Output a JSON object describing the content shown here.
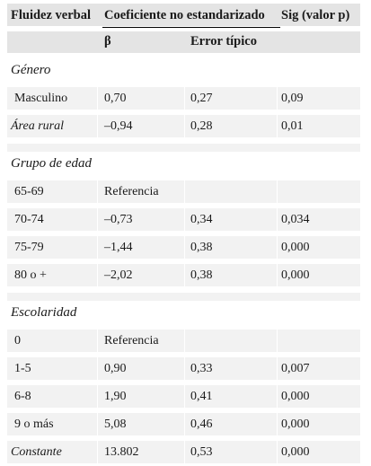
{
  "header": {
    "col1": "Fluidez verbal",
    "col2_group": "Coeficiente no estandarizado",
    "col4": "Sig (valor p)",
    "beta": "β",
    "error": "Error típico"
  },
  "rows": [
    {
      "type": "section",
      "label": "Género"
    },
    {
      "type": "data",
      "label": "Masculino",
      "beta": "0,70",
      "error": "0,27",
      "sig": "0,09"
    },
    {
      "type": "data",
      "label": "Área rural",
      "italic": true,
      "beta": "–0,94",
      "error": "0,28",
      "sig": "0,01"
    },
    {
      "type": "gap"
    },
    {
      "type": "section",
      "label": "Grupo de edad"
    },
    {
      "type": "data",
      "label": "65-69",
      "beta": "Referencia",
      "error": "",
      "sig": ""
    },
    {
      "type": "data",
      "label": "70-74",
      "beta": "–0,73",
      "error": "0,34",
      "sig": "0,034"
    },
    {
      "type": "data",
      "label": "75-79",
      "beta": "–1,44",
      "error": "0,38",
      "sig": "0,000"
    },
    {
      "type": "data",
      "label": "80 o +",
      "beta": "–2,02",
      "error": "0,38",
      "sig": "0,000"
    },
    {
      "type": "gap"
    },
    {
      "type": "section",
      "label": "Escolaridad"
    },
    {
      "type": "data",
      "label": "0",
      "beta": "Referencia",
      "error": "",
      "sig": ""
    },
    {
      "type": "data",
      "label": "1-5",
      "beta": "0,90",
      "error": "0,33",
      "sig": "0,007"
    },
    {
      "type": "data",
      "label": "6-8",
      "beta": "1,90",
      "error": "0,41",
      "sig": "0,000"
    },
    {
      "type": "data",
      "label": "9 o más",
      "beta": "5,08",
      "error": "0,46",
      "sig": "0,000"
    },
    {
      "type": "data",
      "label": "Constante",
      "italic": true,
      "beta": "13.802",
      "error": "0,53",
      "sig": "0,000"
    }
  ]
}
